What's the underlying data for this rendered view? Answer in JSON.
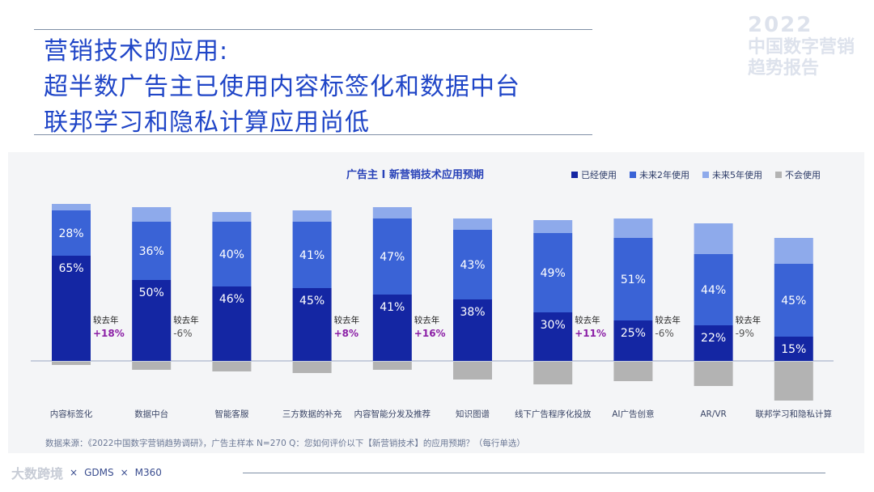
{
  "header": {
    "title_lines": [
      "营销技术的应用:",
      "超半数广告主已使用内容标签化和数据中台",
      "联邦学习和隐私计算应用尚低"
    ]
  },
  "brand": {
    "year": "2022",
    "line1": "中国数字营销",
    "line2": "趋势报告"
  },
  "colors": {
    "used": "#1426a3",
    "in2yr": "#3a63d6",
    "in5yr": "#8eaaeb",
    "never": "#b3b3b3",
    "positive": "#8b1fa6",
    "negative": "#555555"
  },
  "chart_data": {
    "type": "bar",
    "title": "广告主 I 新营销技术应用预期",
    "legend": [
      "已经使用",
      "未来2年使用",
      "未来5年使用",
      "不会使用"
    ],
    "categories": [
      "内容标签化",
      "数据中台",
      "智能客服",
      "三方数据的补充",
      "内容智能分发及推荐",
      "知识图谱",
      "线下广告程序化投放",
      "AI广告创意",
      "AR/VR",
      "联邦学习和隐私计算"
    ],
    "series": [
      {
        "name": "已经使用",
        "values": [
          65,
          50,
          46,
          45,
          41,
          38,
          30,
          25,
          22,
          15
        ]
      },
      {
        "name": "未来2年使用",
        "values": [
          28,
          36,
          40,
          41,
          47,
          43,
          49,
          51,
          44,
          45
        ]
      },
      {
        "name": "未来5年使用",
        "values": [
          4,
          9,
          6,
          7,
          7,
          7,
          8,
          12,
          19,
          16
        ]
      },
      {
        "name": "不会使用",
        "values": [
          2,
          5,
          6,
          7,
          5,
          11,
          14,
          12,
          15,
          24
        ]
      }
    ],
    "data_labels": {
      "used": [
        "65%",
        "50%",
        "46%",
        "45%",
        "41%",
        "38%",
        "30%",
        "25%",
        "22%",
        "15%"
      ],
      "in2yr": [
        "28%",
        "36%",
        "40%",
        "41%",
        "47%",
        "43%",
        "49%",
        "51%",
        "44%",
        "45%"
      ]
    },
    "yoy": [
      {
        "index": 0,
        "label": "较去年",
        "value": "+18%",
        "sign": "positive"
      },
      {
        "index": 1,
        "label": "较去年",
        "value": "-6%",
        "sign": "negative"
      },
      {
        "index": 3,
        "label": "较去年",
        "value": "+8%",
        "sign": "positive"
      },
      {
        "index": 4,
        "label": "较去年",
        "value": "+16%",
        "sign": "positive"
      },
      {
        "index": 6,
        "label": "较去年",
        "value": "+11%",
        "sign": "positive"
      },
      {
        "index": 7,
        "label": "较去年",
        "value": "-6%",
        "sign": "negative"
      },
      {
        "index": 8,
        "label": "较去年",
        "value": "-9%",
        "sign": "negative"
      }
    ]
  },
  "footnote": "数据来源：《2022中国数字营销趋势调研》，广告主样本 N=270    Q：您如何评价以下【新营销技术】的应用预期？（每行单选）",
  "footer": {
    "logo_gdms": "GDMS",
    "logo_m360": "M360",
    "watermark": "大数跨境",
    "times": "×"
  }
}
